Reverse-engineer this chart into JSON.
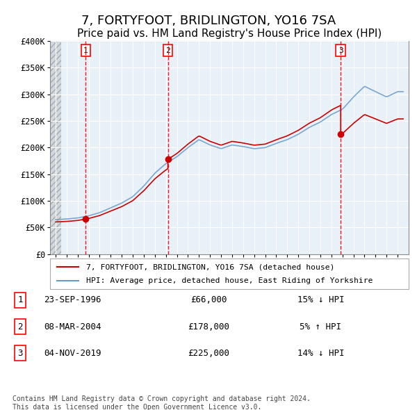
{
  "title": "7, FORTYFOOT, BRIDLINGTON, YO16 7SA",
  "subtitle": "Price paid vs. HM Land Registry's House Price Index (HPI)",
  "ylabel": "",
  "xlabel": "",
  "ylim": [
    0,
    400000
  ],
  "yticks": [
    0,
    50000,
    100000,
    150000,
    200000,
    250000,
    300000,
    350000,
    400000
  ],
  "ytick_labels": [
    "£0",
    "£50K",
    "£100K",
    "£150K",
    "£200K",
    "£250K",
    "£300K",
    "£350K",
    "£400K"
  ],
  "xlim_start": 1993.5,
  "xlim_end": 2026.0,
  "hatch_end": 1994.5,
  "sale_dates": [
    1996.73,
    2004.18,
    2019.84
  ],
  "sale_prices": [
    66000,
    178000,
    225000
  ],
  "sale_labels": [
    "1",
    "2",
    "3"
  ],
  "sale_info": [
    {
      "num": "1",
      "date": "23-SEP-1996",
      "price": "£66,000",
      "hpi": "15% ↓ HPI"
    },
    {
      "num": "2",
      "date": "08-MAR-2004",
      "price": "£178,000",
      "hpi": "5% ↑ HPI"
    },
    {
      "num": "3",
      "date": "04-NOV-2019",
      "price": "£225,000",
      "hpi": "14% ↓ HPI"
    }
  ],
  "legend_items": [
    {
      "label": "7, FORTYFOOT, BRIDLINGTON, YO16 7SA (detached house)",
      "color": "#cc0000",
      "lw": 1.5
    },
    {
      "label": "HPI: Average price, detached house, East Riding of Yorkshire",
      "color": "#6699cc",
      "lw": 1.5
    }
  ],
  "footnote": "Contains HM Land Registry data © Crown copyright and database right 2024.\nThis data is licensed under the Open Government Licence v3.0.",
  "background_color": "#e8f0f8",
  "hatch_color": "#cccccc",
  "grid_color": "#ffffff",
  "red_line_color": "#cc0000",
  "blue_line_color": "#6699cc",
  "title_fontsize": 13,
  "subtitle_fontsize": 11
}
